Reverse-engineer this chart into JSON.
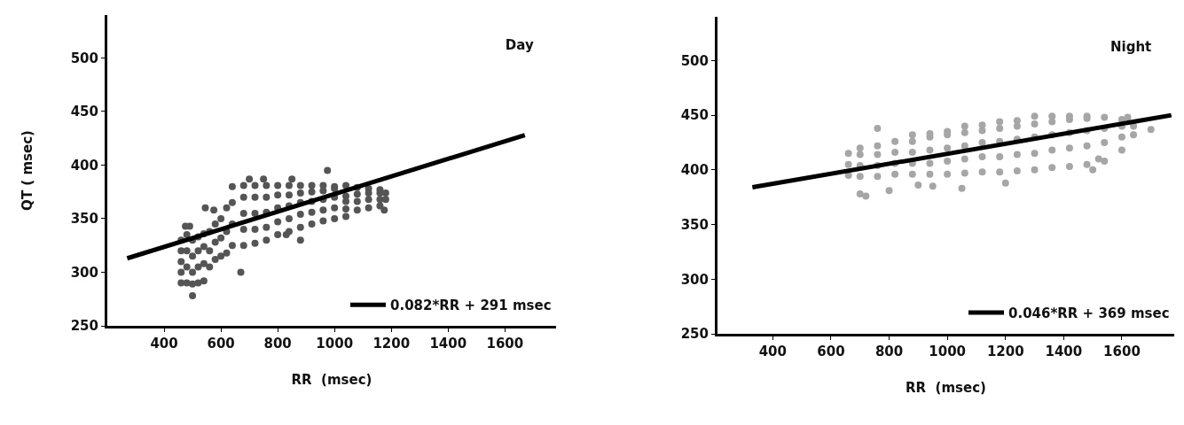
{
  "chart_data": [
    {
      "type": "scatter",
      "title": "Day",
      "xlabel": "RR  (msec)",
      "ylabel": "QT ( msec)",
      "xlim": [
        200,
        1780
      ],
      "xticks": [
        400,
        600,
        800,
        1000,
        1200,
        1400,
        1600
      ],
      "ylim": [
        250,
        540
      ],
      "yticks": [
        250,
        300,
        350,
        400,
        450,
        500
      ],
      "grid": false,
      "legend": "bottom right",
      "series": [
        {
          "marker": "circle",
          "color": "#555555",
          "x": [
            460,
            460,
            460,
            460,
            460,
            480,
            480,
            480,
            480,
            500,
            500,
            500,
            500,
            520,
            520,
            520,
            520,
            540,
            540,
            540,
            540,
            560,
            560,
            560,
            580,
            580,
            580,
            600,
            600,
            600,
            620,
            620,
            620,
            640,
            640,
            640,
            640,
            680,
            680,
            680,
            680,
            680,
            720,
            720,
            720,
            720,
            720,
            760,
            760,
            760,
            760,
            760,
            800,
            800,
            800,
            800,
            800,
            840,
            840,
            840,
            840,
            840,
            880,
            880,
            880,
            880,
            880,
            920,
            920,
            920,
            920,
            920,
            960,
            960,
            960,
            960,
            960,
            1000,
            1000,
            1000,
            1000,
            1000,
            1040,
            1040,
            1040,
            1040,
            1040,
            1080,
            1080,
            1080,
            1080,
            1120,
            1120,
            1120,
            1120,
            1160,
            1160,
            1160,
            1160,
            1180,
            1180,
            500,
            670,
            545,
            575,
            475,
            490,
            700,
            750,
            850,
            975,
            830,
            880,
            1175
          ],
          "values": [
            290,
            300,
            310,
            320,
            330,
            290,
            305,
            320,
            335,
            289,
            300,
            315,
            330,
            290,
            305,
            320,
            333,
            292,
            308,
            324,
            336,
            305,
            320,
            338,
            312,
            328,
            345,
            315,
            332,
            350,
            318,
            338,
            360,
            325,
            345,
            365,
            380,
            325,
            340,
            355,
            370,
            381,
            327,
            340,
            355,
            370,
            381,
            330,
            342,
            356,
            370,
            381,
            335,
            347,
            360,
            372,
            381,
            338,
            350,
            362,
            372,
            381,
            342,
            354,
            365,
            374,
            381,
            345,
            356,
            366,
            375,
            381,
            348,
            358,
            368,
            376,
            381,
            350,
            360,
            370,
            378,
            380,
            352,
            359,
            366,
            371,
            381,
            358,
            366,
            373,
            379,
            360,
            368,
            374,
            378,
            362,
            368,
            374,
            377,
            368,
            374,
            278,
            300,
            360,
            358,
            343,
            343,
            387,
            387,
            387,
            395,
            335,
            330,
            358
          ]
        },
        {
          "type": "line",
          "marker": "none",
          "name": "0.082*RR + 291 msec",
          "color": "#000000",
          "x": [
            270,
            1670
          ],
          "values": [
            313,
            428
          ]
        }
      ]
    },
    {
      "type": "scatter",
      "title": "Night",
      "xlabel": "RR  (msec)",
      "xlim": [
        210,
        1780
      ],
      "xticks": [
        400,
        600,
        800,
        1000,
        1200,
        1400,
        1600
      ],
      "ylim": [
        250,
        540
      ],
      "yticks": [
        250,
        300,
        350,
        400,
        450,
        500
      ],
      "grid": false,
      "legend": "bottom right",
      "series": [
        {
          "marker": "circle",
          "color": "#a6a6a6",
          "x": [
            660,
            660,
            660,
            700,
            700,
            700,
            700,
            760,
            760,
            760,
            760,
            820,
            820,
            820,
            820,
            880,
            880,
            880,
            880,
            880,
            940,
            940,
            940,
            940,
            940,
            1000,
            1000,
            1000,
            1000,
            1000,
            1060,
            1060,
            1060,
            1060,
            1060,
            1120,
            1120,
            1120,
            1120,
            1120,
            1180,
            1180,
            1180,
            1180,
            1180,
            1240,
            1240,
            1240,
            1240,
            1240,
            1300,
            1300,
            1300,
            1300,
            1300,
            1360,
            1360,
            1360,
            1360,
            1360,
            1420,
            1420,
            1420,
            1420,
            1420,
            1480,
            1480,
            1480,
            1480,
            1480,
            1540,
            1540,
            1540,
            1540,
            1600,
            1600,
            1600,
            1600,
            1640,
            1640,
            700,
            720,
            800,
            760,
            900,
            950,
            1050,
            1200,
            1500,
            1520,
            1620,
            1700
          ],
          "values": [
            395,
            405,
            415,
            394,
            404,
            414,
            420,
            394,
            404,
            414,
            422,
            396,
            406,
            416,
            426,
            396,
            406,
            416,
            426,
            432,
            396,
            406,
            418,
            430,
            433,
            396,
            408,
            420,
            432,
            435,
            397,
            410,
            422,
            434,
            440,
            398,
            412,
            425,
            436,
            441,
            398,
            412,
            426,
            438,
            444,
            399,
            414,
            428,
            440,
            445,
            400,
            415,
            430,
            442,
            449,
            402,
            418,
            432,
            444,
            449,
            403,
            420,
            434,
            446,
            449,
            405,
            422,
            436,
            447,
            449,
            408,
            425,
            438,
            448,
            418,
            430,
            440,
            446,
            432,
            440,
            378,
            376,
            381,
            438,
            386,
            385,
            383,
            388,
            400,
            410,
            448,
            437
          ]
        },
        {
          "type": "line",
          "marker": "none",
          "name": "0.046*RR + 369 msec",
          "color": "#000000",
          "x": [
            330,
            1770
          ],
          "values": [
            384,
            450
          ]
        }
      ]
    }
  ]
}
